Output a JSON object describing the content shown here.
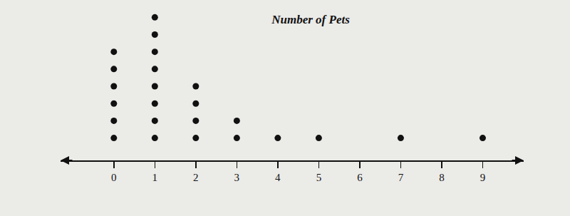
{
  "chart_data": {
    "type": "dot",
    "title": "Number of Pets",
    "x": [
      0,
      1,
      2,
      3,
      4,
      5,
      6,
      7,
      8,
      9
    ],
    "values": [
      6,
      8,
      4,
      2,
      1,
      1,
      0,
      1,
      0,
      1
    ],
    "xlim": [
      -1.3,
      10
    ],
    "xticks": [
      0,
      1,
      2,
      3,
      4,
      5,
      6,
      7,
      8,
      9
    ],
    "color": "#111111",
    "marker": "circle",
    "tick_labels": "x",
    "grid": false
  }
}
